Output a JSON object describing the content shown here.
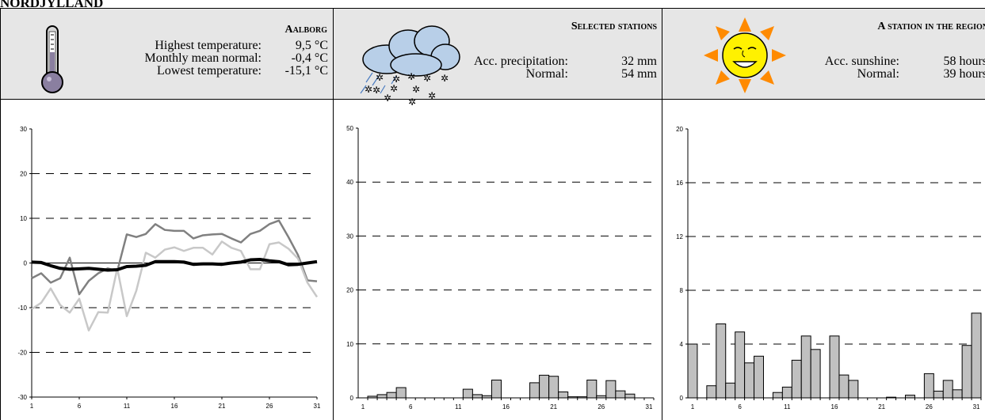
{
  "page_title": "NORDJYLLAND",
  "panels": [
    {
      "title": "Aalborg",
      "stats": [
        {
          "label": "Highest temperature:",
          "value": "9,5 °C"
        },
        {
          "label": "Monthly mean normal:",
          "value": "-0,4 °C"
        },
        {
          "label": "Lowest temperature:",
          "value": "-15,1 °C"
        }
      ]
    },
    {
      "title": "Selected stations",
      "stats": [
        {
          "label": "Acc. precipitation:",
          "value": "32 mm"
        },
        {
          "label": "Normal:",
          "value": "54 mm"
        }
      ]
    },
    {
      "title": "A station in the region",
      "stats": [
        {
          "label": "Acc. sunshine:",
          "value": "58 hours"
        },
        {
          "label": "Normal:",
          "value": "39 hours"
        }
      ]
    }
  ],
  "chart_data": [
    {
      "type": "line",
      "x": [
        1,
        2,
        3,
        4,
        5,
        6,
        7,
        8,
        9,
        10,
        11,
        12,
        13,
        14,
        15,
        16,
        17,
        18,
        19,
        20,
        21,
        22,
        23,
        24,
        25,
        26,
        27,
        28,
        29,
        30,
        31
      ],
      "xlim": [
        1,
        31
      ],
      "xticks": [
        1,
        6,
        11,
        16,
        21,
        26,
        31
      ],
      "ylim": [
        -30,
        30
      ],
      "yticks": [
        -30,
        -20,
        -10,
        0,
        10,
        20,
        30
      ],
      "grid": true,
      "series": [
        {
          "color": "#808080",
          "width": 2.5,
          "values": [
            -3.4,
            -2.3,
            -4.4,
            -3.4,
            1.2,
            -7,
            -4,
            -2.3,
            -1.2,
            -1.8,
            6.4,
            5.8,
            6.5,
            8.7,
            7.4,
            7.2,
            7.2,
            5.5,
            6.2,
            6.4,
            6.5,
            5.5,
            4.6,
            6.5,
            7.2,
            8.7,
            9.5,
            5.8,
            1.8,
            -3.9,
            -4.1
          ]
        },
        {
          "color": "#c8c8c8",
          "width": 2.5,
          "values": [
            -10.3,
            -8.9,
            -5.7,
            -9.4,
            -11.1,
            -8,
            -15.1,
            -11,
            -11.1,
            -1.2,
            -11.9,
            -6.2,
            2.3,
            1.2,
            3,
            3.5,
            2.7,
            3.4,
            3.4,
            1.9,
            4.8,
            3.4,
            2.7,
            -1.4,
            -1.4,
            4.2,
            4.6,
            3.2,
            1,
            -4.4,
            -7.6
          ]
        },
        {
          "color": "#000000",
          "width": 4,
          "values": [
            0.2,
            0.1,
            -0.6,
            -1.2,
            -1.4,
            -1.3,
            -1.2,
            -1.4,
            -1.6,
            -1.5,
            -0.8,
            -0.7,
            -0.5,
            0.3,
            0.3,
            0.3,
            0.2,
            -0.3,
            -0.2,
            -0.2,
            -0.3,
            0,
            0.2,
            0.7,
            0.8,
            0.5,
            0.3,
            -0.4,
            -0.3,
            0,
            0.3
          ]
        }
      ]
    },
    {
      "type": "bar",
      "categories": [
        1,
        null,
        null,
        null,
        null,
        6,
        null,
        null,
        null,
        null,
        11,
        null,
        null,
        null,
        null,
        16,
        null,
        null,
        null,
        null,
        21,
        null,
        null,
        null,
        null,
        26,
        null,
        null,
        null,
        null,
        31
      ],
      "values": [
        0,
        0.3,
        0.6,
        1.0,
        1.9,
        0,
        0,
        0,
        0,
        0,
        0,
        1.6,
        0.6,
        0.4,
        3.3,
        0,
        0,
        0,
        2.8,
        4.2,
        4.0,
        1.1,
        0.2,
        0.2,
        3.3,
        0.4,
        3.2,
        1.3,
        0.7,
        0,
        0
      ],
      "color": "#c0c0c0",
      "ylim": [
        0,
        50
      ],
      "yticks": [
        0,
        10,
        20,
        30,
        40,
        50
      ],
      "grid": true
    },
    {
      "type": "bar",
      "categories": [
        1,
        null,
        null,
        null,
        null,
        6,
        null,
        null,
        null,
        null,
        11,
        null,
        null,
        null,
        null,
        16,
        null,
        null,
        null,
        null,
        21,
        null,
        null,
        null,
        null,
        26,
        null,
        null,
        null,
        null,
        31
      ],
      "values": [
        4.0,
        0,
        0.9,
        5.5,
        1.1,
        4.9,
        2.6,
        3.1,
        0,
        0.4,
        0.8,
        2.8,
        4.6,
        3.6,
        0,
        4.6,
        1.7,
        1.3,
        0,
        0,
        0,
        0.05,
        0,
        0.2,
        0,
        1.8,
        0.5,
        1.3,
        0.6,
        3.9,
        6.3
      ],
      "color": "#c0c0c0",
      "ylim": [
        0,
        20
      ],
      "yticks": [
        0,
        4,
        8,
        12,
        16,
        20
      ],
      "grid": true
    }
  ]
}
